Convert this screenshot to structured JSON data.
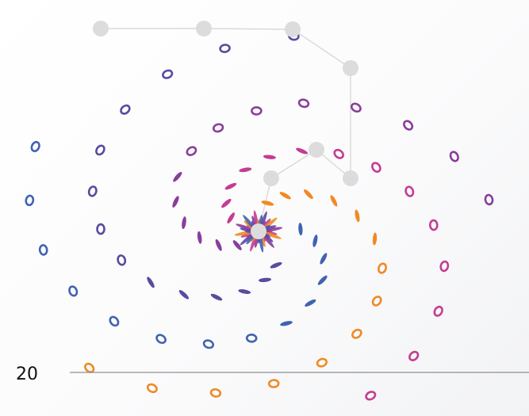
{
  "colors": {
    "background": "#ffffff",
    "node": "#dcdcdc",
    "edge": "#d9d9d9",
    "axis": "#8f8f8f",
    "purple": "#8a3d9b",
    "magenta": "#c43d92",
    "orange": "#f08a24",
    "blue": "#4063b0",
    "indigo": "#5a4aa0"
  },
  "axis": {
    "tick_label": "20"
  },
  "network": {
    "node_count": 8
  }
}
